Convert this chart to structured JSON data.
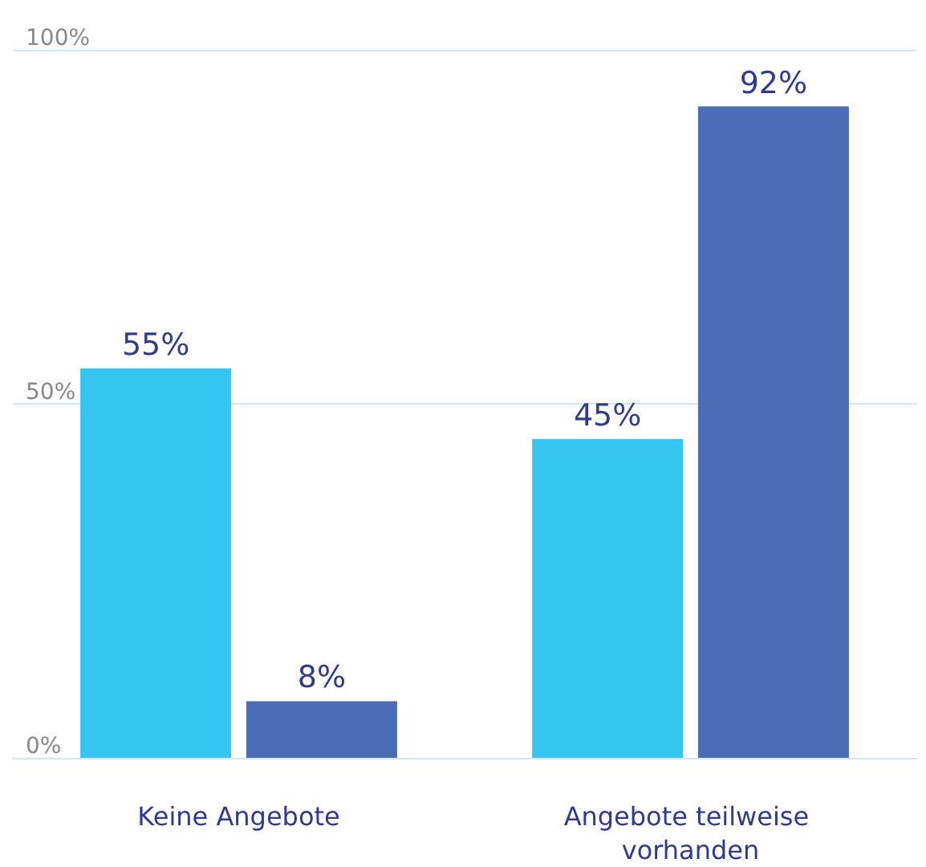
{
  "chart_data": {
    "type": "bar",
    "categories": [
      "Keine Angebote",
      "Angebote teilweise vorhanden"
    ],
    "series": [
      {
        "color": "#36c5f0",
        "values": [
          55,
          45
        ],
        "value_labels": [
          "55%",
          "45%"
        ]
      },
      {
        "color": "#4a6db5",
        "values": [
          8,
          92
        ],
        "value_labels": [
          "8%",
          "92%"
        ]
      }
    ],
    "ylim": [
      0,
      100
    ],
    "yticks": [
      {
        "value": 0,
        "label": "0%"
      },
      {
        "value": 50,
        "label": "50%"
      },
      {
        "value": 100,
        "label": "100%"
      }
    ],
    "grid": "y"
  }
}
